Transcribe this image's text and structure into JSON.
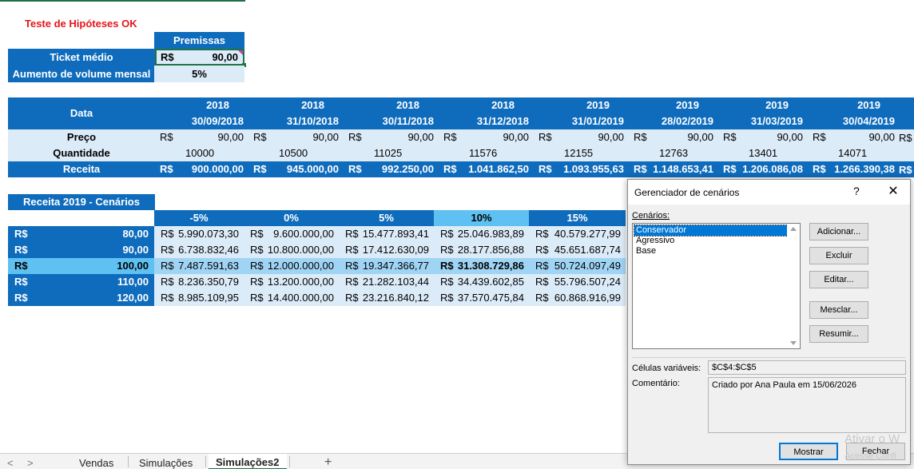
{
  "title": "Teste de Hipóteses OK",
  "premissas": {
    "header": "Premissas",
    "ticket_label": "Ticket médio",
    "ticket_currency": "R$",
    "ticket_value": "90,00",
    "volume_label": "Aumento de volume mensal",
    "volume_value": "5%"
  },
  "data_table": {
    "data_label": "Data",
    "preco_label": "Preço",
    "qtd_label": "Quantidade",
    "receita_label": "Receita",
    "currency": "R$",
    "columns": [
      {
        "year": "2018",
        "date": "30/09/2018",
        "preco": "90,00",
        "qtd": "10000",
        "receita": "900.000,00"
      },
      {
        "year": "2018",
        "date": "31/10/2018",
        "preco": "90,00",
        "qtd": "10500",
        "receita": "945.000,00"
      },
      {
        "year": "2018",
        "date": "30/11/2018",
        "preco": "90,00",
        "qtd": "11025",
        "receita": "992.250,00"
      },
      {
        "year": "2018",
        "date": "31/12/2018",
        "preco": "90,00",
        "qtd": "11576",
        "receita": "1.041.862,50"
      },
      {
        "year": "2019",
        "date": "31/01/2019",
        "preco": "90,00",
        "qtd": "12155",
        "receita": "1.093.955,63"
      },
      {
        "year": "2019",
        "date": "28/02/2019",
        "preco": "90,00",
        "qtd": "12763",
        "receita": "1.148.653,41"
      },
      {
        "year": "2019",
        "date": "31/03/2019",
        "preco": "90,00",
        "qtd": "13401",
        "receita": "1.206.086,08"
      },
      {
        "year": "2019",
        "date": "30/04/2019",
        "preco": "90,00",
        "qtd": "14071",
        "receita": "1.266.390,38"
      }
    ]
  },
  "scenario_table": {
    "title": "Receita 2019 - Cenários",
    "columns": [
      "-5%",
      "0%",
      "5%",
      "10%",
      "15%"
    ],
    "rows": [
      {
        "label": "R$",
        "price": "80,00",
        "values": [
          "5.990.073,30",
          "9.600.000,00",
          "15.477.893,41",
          "25.046.983,89",
          "40.579.277,99"
        ]
      },
      {
        "label": "R$",
        "price": "90,00",
        "values": [
          "6.738.832,46",
          "10.800.000,00",
          "17.412.630,09",
          "28.177.856,88",
          "45.651.687,74"
        ]
      },
      {
        "label": "R$",
        "price": "100,00",
        "values": [
          "7.487.591,63",
          "12.000.000,00",
          "19.347.366,77",
          "31.308.729,86",
          "50.724.097,49"
        ]
      },
      {
        "label": "R$",
        "price": "110,00",
        "values": [
          "8.236.350,79",
          "13.200.000,00",
          "21.282.103,44",
          "34.439.602,85",
          "55.796.507,24"
        ]
      },
      {
        "label": "R$",
        "price": "120,00",
        "values": [
          "8.985.109,95",
          "14.400.000,00",
          "23.216.840,12",
          "37.570.475,84",
          "60.868.916,99"
        ]
      }
    ],
    "currency": "R$"
  },
  "tabs": {
    "nav_prev": "<",
    "nav_next": ">",
    "sheets": [
      "Vendas",
      "Simulações",
      "Simulações2"
    ],
    "add": "+"
  },
  "dialog": {
    "title": "Gerenciador de cenários",
    "help": "?",
    "close": "✕",
    "scenarios_label": "Cenários:",
    "scenarios": [
      "Conservador",
      "Agressivo",
      "Base"
    ],
    "buttons": {
      "add": "Adicionar...",
      "delete": "Excluir",
      "edit": "Editar...",
      "merge": "Mesclar...",
      "summary": "Resumir..."
    },
    "changing_cells_label": "Células variáveis:",
    "changing_cells": "$C$4:$C$5",
    "comment_label": "Comentário:",
    "comment": "Criado por Ana Paula em 15/06/2026",
    "show": "Mostrar",
    "close_btn": "Fechar"
  },
  "watermark": {
    "line1": "Ativar o W",
    "line2": "Acesse Confi"
  },
  "colors": {
    "header_blue": "#0f6cbd",
    "light_blue": "#dcebf8",
    "highlight_blue": "#9fd4f4",
    "title_red": "#e5161c",
    "excel_green": "#217346"
  }
}
